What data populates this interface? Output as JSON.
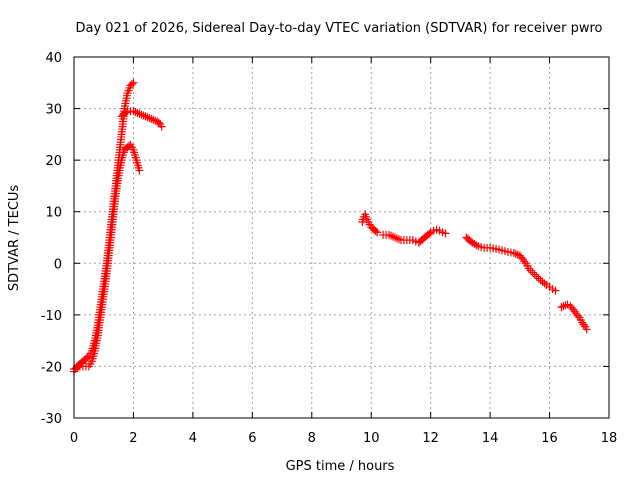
{
  "chart_data": {
    "type": "scatter",
    "title": "Day 021 of 2026, Sidereal Day-to-day VTEC variation (SDTVAR) for receiver pwro",
    "xlabel": "GPS time / hours",
    "ylabel": "SDTVAR / TECUs",
    "xlim": [
      0,
      18
    ],
    "ylim": [
      -30,
      40
    ],
    "xticks": [
      0,
      2,
      4,
      6,
      8,
      10,
      12,
      14,
      16,
      18
    ],
    "yticks": [
      -30,
      -20,
      -10,
      0,
      10,
      20,
      30,
      40
    ],
    "grid": true,
    "marker": "+",
    "series": [
      {
        "name": "SDTVAR",
        "color": "#ff0000",
        "segments": [
          [
            [
              0.0,
              -21
            ],
            [
              0.1,
              -20
            ],
            [
              0.2,
              -19.5
            ],
            [
              0.3,
              -19
            ],
            [
              0.4,
              -18.5
            ],
            [
              0.5,
              -18
            ],
            [
              0.6,
              -17
            ],
            [
              0.7,
              -15
            ],
            [
              0.8,
              -12
            ],
            [
              0.9,
              -8
            ],
            [
              1.0,
              -4
            ],
            [
              1.1,
              0
            ],
            [
              1.2,
              5
            ],
            [
              1.3,
              10
            ],
            [
              1.4,
              15
            ],
            [
              1.5,
              20
            ],
            [
              1.6,
              25
            ],
            [
              1.7,
              30
            ],
            [
              1.8,
              33
            ],
            [
              1.9,
              34.5
            ],
            [
              2.0,
              35
            ]
          ],
          [
            [
              0.0,
              -20.5
            ],
            [
              0.2,
              -20
            ],
            [
              0.4,
              -20
            ],
            [
              0.5,
              -20
            ],
            [
              0.6,
              -19
            ],
            [
              0.7,
              -17
            ],
            [
              0.8,
              -14
            ],
            [
              0.9,
              -10
            ],
            [
              1.0,
              -6
            ],
            [
              1.1,
              -2
            ],
            [
              1.2,
              3
            ],
            [
              1.3,
              8
            ],
            [
              1.4,
              13
            ],
            [
              1.5,
              17
            ],
            [
              1.6,
              20
            ],
            [
              1.7,
              22
            ],
            [
              1.8,
              22.5
            ],
            [
              1.9,
              23
            ],
            [
              2.0,
              22
            ],
            [
              2.1,
              20
            ],
            [
              2.2,
              18
            ]
          ],
          [
            [
              1.6,
              28.5
            ],
            [
              1.7,
              29
            ],
            [
              1.8,
              29.5
            ],
            [
              2.0,
              29.5
            ],
            [
              2.2,
              29
            ],
            [
              2.4,
              28.5
            ],
            [
              2.6,
              28
            ],
            [
              2.8,
              27.5
            ],
            [
              2.9,
              27
            ],
            [
              2.95,
              26.5
            ]
          ],
          [
            [
              9.7,
              8
            ],
            [
              9.75,
              9
            ],
            [
              9.8,
              9.5
            ],
            [
              9.85,
              8.5
            ],
            [
              9.9,
              8
            ],
            [
              10.0,
              7
            ],
            [
              10.1,
              6.5
            ],
            [
              10.2,
              6
            ]
          ],
          [
            [
              10.4,
              5.5
            ],
            [
              10.6,
              5.5
            ],
            [
              10.8,
              5
            ],
            [
              11.0,
              4.5
            ],
            [
              11.2,
              4.5
            ],
            [
              11.4,
              4.5
            ],
            [
              11.5,
              4.2
            ],
            [
              11.6,
              4
            ],
            [
              11.7,
              4.5
            ],
            [
              11.8,
              5
            ],
            [
              11.9,
              5.5
            ],
            [
              12.0,
              6
            ],
            [
              12.1,
              6.3
            ],
            [
              12.2,
              6.5
            ],
            [
              12.3,
              6.3
            ],
            [
              12.4,
              6
            ],
            [
              12.5,
              5.8
            ]
          ],
          [
            [
              13.2,
              5
            ],
            [
              13.3,
              4.5
            ],
            [
              13.4,
              4
            ],
            [
              13.6,
              3.3
            ],
            [
              13.8,
              3
            ],
            [
              14.0,
              3
            ],
            [
              14.2,
              2.8
            ],
            [
              14.4,
              2.5
            ],
            [
              14.6,
              2.2
            ],
            [
              14.8,
              2
            ],
            [
              15.0,
              1.5
            ],
            [
              15.1,
              0.8
            ],
            [
              15.2,
              0
            ],
            [
              15.3,
              -1
            ],
            [
              15.5,
              -2.2
            ],
            [
              15.7,
              -3.3
            ],
            [
              15.9,
              -4.2
            ],
            [
              16.0,
              -4.6
            ],
            [
              16.1,
              -5
            ],
            [
              16.2,
              -5.3
            ]
          ],
          [
            [
              16.4,
              -8.5
            ],
            [
              16.6,
              -8
            ],
            [
              16.7,
              -8.3
            ],
            [
              16.8,
              -9
            ],
            [
              16.9,
              -9.8
            ],
            [
              17.0,
              -10.5
            ],
            [
              17.1,
              -11.5
            ],
            [
              17.2,
              -12.3
            ],
            [
              17.25,
              -12.8
            ]
          ]
        ]
      }
    ]
  }
}
